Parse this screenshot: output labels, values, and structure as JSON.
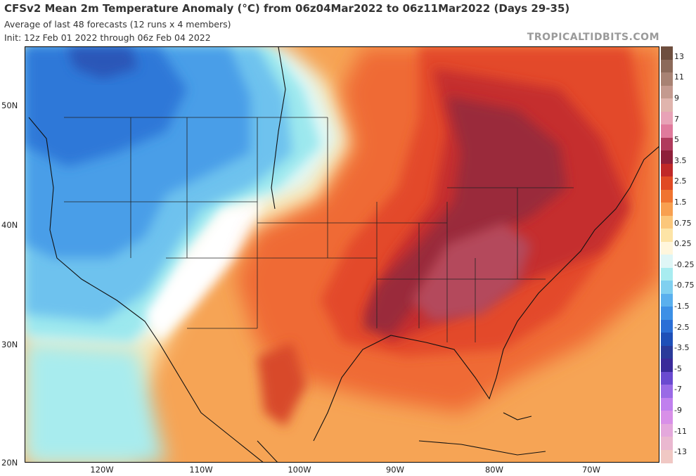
{
  "header": {
    "title": "CFSv2 Mean 2m Temperature Anomaly (°C) from 06z04Mar2022 to 06z11Mar2022 (Days 29-35)",
    "subtitle": "Average of last 48 forecasts (12 runs x 4 members)",
    "init": "Init: 12z Feb 01 2022 through 06z Feb 04 2022",
    "brand": "TROPICALTIDBITS.COM"
  },
  "axes": {
    "lat_labels": [
      "50N",
      "40N",
      "30N",
      "20N"
    ],
    "lon_labels": [
      "120W",
      "110W",
      "100W",
      "90W",
      "80W",
      "70W"
    ]
  },
  "colorbar": {
    "labels": [
      "13",
      "11",
      "9",
      "7",
      "5",
      "3.5",
      "2.5",
      "1.5",
      "0.75",
      "0.25",
      "-0.25",
      "-0.75",
      "-1.5",
      "-2.5",
      "-3.5",
      "-5",
      "-7",
      "-9",
      "-11",
      "-13"
    ],
    "colors": [
      "#6e4e3e",
      "#8c6a5a",
      "#a88273",
      "#c49a8f",
      "#e0b4ad",
      "#e8a2b6",
      "#e07a9c",
      "#b03a5c",
      "#8e1f3a",
      "#c02828",
      "#e04a24",
      "#f07430",
      "#f8a050",
      "#fbc77a",
      "#fde4a6",
      "#fff6dc",
      "#dff6f6",
      "#a8ecf0",
      "#80d0f0",
      "#5ab0ee",
      "#3c90e6",
      "#2a6ed6",
      "#1e4fb8",
      "#2a3a9a",
      "#3a2a9a",
      "#6a4ad0",
      "#9a6ae6",
      "#c080ee",
      "#d890e8",
      "#e4a8dc",
      "#eab8d0",
      "#f0c8c4"
    ]
  }
}
